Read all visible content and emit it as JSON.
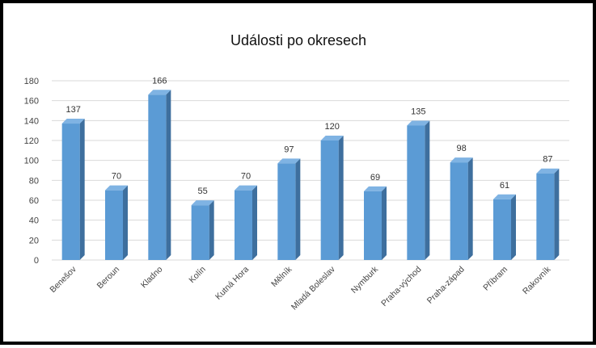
{
  "chart_data": {
    "type": "bar",
    "title": "Události po okresech",
    "categories": [
      "Benešov",
      "Beroun",
      "Kladno",
      "Kolín",
      "Kutná Hora",
      "Mělník",
      "Mladá Boleslav",
      "Nymburk",
      "Praha-východ",
      "Praha-západ",
      "Příbram",
      "Rakovník"
    ],
    "values": [
      137,
      70,
      166,
      55,
      70,
      97,
      120,
      69,
      135,
      98,
      61,
      87
    ],
    "yticks": [
      0,
      20,
      40,
      60,
      80,
      100,
      120,
      140,
      160,
      180
    ],
    "ylim": [
      0,
      180
    ],
    "grid": true,
    "data_labels": true,
    "legend": "none",
    "bar_color": "#5b9bd5",
    "bar_side_color": "#3e6f9e",
    "bar_top_color": "#7fb3e3"
  }
}
